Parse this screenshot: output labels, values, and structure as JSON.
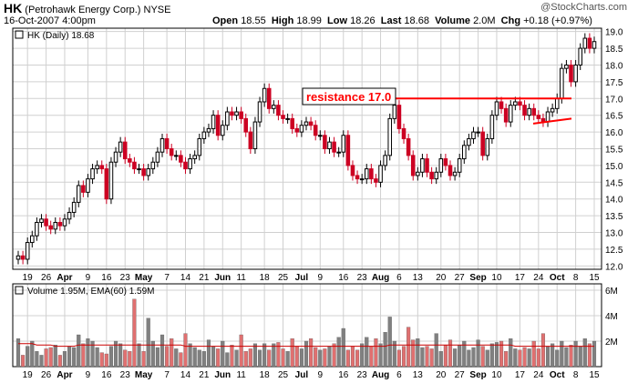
{
  "header": {
    "symbol": "HK",
    "company": "(Petrohawk Energy Corp.)",
    "exchange": "NYSE",
    "date": "16-Oct-2007 4:00pm",
    "watermark": "@StockCharts.com",
    "open_label": "Open",
    "open": "18.55",
    "high_label": "High",
    "high": "18.99",
    "low_label": "Low",
    "low": "18.26",
    "last_label": "Last",
    "last": "18.68",
    "volume_label": "Volume",
    "volume": "2.0M",
    "chg_label": "Chg",
    "chg": "+0.18 (+0.97%)"
  },
  "price_legend": "HK (Daily) 18.68",
  "volume_legend": "Volume 1.95M, EMA(60) 1.59M",
  "annotation": "resistance 17.0",
  "colors": {
    "up": "#000000",
    "down": "#cc0022",
    "resistance": "#ff0000",
    "vol_up": "#808080",
    "vol_down": "#e07070",
    "ema": "#cc0000",
    "grid": "#d0d0d0"
  },
  "chart_data": [
    {
      "type": "candlestick",
      "title": "HK (Daily) 18.68",
      "ylim": [
        11.9,
        19.1
      ],
      "yticks": [
        12.0,
        12.5,
        13.0,
        13.5,
        14.0,
        14.5,
        15.0,
        15.5,
        16.0,
        16.5,
        17.0,
        17.5,
        18.0,
        18.5,
        19.0
      ],
      "xticks": [
        "19",
        "26",
        "Apr",
        "9",
        "16",
        "23",
        "May",
        "7",
        "14",
        "21",
        "Jun",
        "11",
        "18",
        "25",
        "Jul",
        "9",
        "16",
        "23",
        "Aug",
        "6",
        "13",
        "20",
        "27",
        "Sep",
        "10",
        "17",
        "24",
        "Oct",
        "8",
        "15"
      ],
      "month_labels": [
        "Apr",
        "May",
        "Jun",
        "Jul",
        "Aug",
        "Sep",
        "Oct"
      ],
      "close": [
        12.3,
        12.2,
        12.7,
        12.9,
        13.3,
        13.4,
        13.2,
        13.1,
        13.3,
        13.2,
        13.4,
        13.6,
        13.9,
        14.4,
        14.2,
        14.6,
        14.9,
        15.0,
        14.9,
        14.0,
        15.1,
        15.4,
        15.7,
        15.2,
        15.1,
        14.9,
        14.9,
        14.7,
        14.9,
        15.1,
        15.4,
        15.8,
        15.5,
        15.3,
        15.3,
        15.1,
        14.9,
        15.2,
        15.3,
        15.8,
        16.0,
        16.1,
        16.5,
        15.9,
        16.2,
        16.6,
        16.5,
        16.6,
        16.4,
        16.0,
        15.5,
        16.3,
        16.9,
        17.3,
        16.7,
        16.8,
        16.5,
        16.4,
        16.4,
        16.1,
        16.0,
        16.2,
        16.3,
        16.2,
        15.9,
        15.9,
        15.5,
        15.7,
        15.4,
        15.4,
        15.9,
        15.0,
        14.7,
        14.6,
        14.6,
        14.9,
        14.6,
        14.5,
        15.0,
        15.3,
        16.4,
        16.8,
        16.1,
        15.8,
        15.3,
        14.7,
        14.8,
        15.2,
        14.8,
        14.6,
        14.8,
        15.2,
        15.0,
        14.7,
        14.8,
        15.2,
        15.6,
        15.8,
        16.0,
        16.0,
        15.3,
        15.8,
        16.5,
        16.9,
        16.7,
        16.3,
        16.8,
        16.9,
        16.8,
        16.5,
        16.7,
        16.5,
        16.4,
        16.3,
        16.6,
        16.7,
        17.0,
        17.9,
        18.0,
        17.5,
        18.0,
        18.5,
        18.8,
        18.5,
        18.7
      ],
      "volume_ylim": [
        0,
        6.5
      ],
      "volume_ticks": [
        2,
        4,
        6
      ],
      "volume_tick_labels": [
        "2M",
        "4M",
        "6M"
      ],
      "volume": [
        2.2,
        0.9,
        1.6,
        2.0,
        1.2,
        0.9,
        1.4,
        1.5,
        1.7,
        0.9,
        1.2,
        1.6,
        1.5,
        2.5,
        1.8,
        2.2,
        2.0,
        1.5,
        1.1,
        1.0,
        1.6,
        2.0,
        1.8,
        1.3,
        1.2,
        5.3,
        1.8,
        1.2,
        3.8,
        2.0,
        1.5,
        2.5,
        1.6,
        2.2,
        1.4,
        1.1,
        2.6,
        1.8,
        1.5,
        1.3,
        1.2,
        2.1,
        1.6,
        1.4,
        2.0,
        1.1,
        1.7,
        1.3,
        2.5,
        1.2,
        1.4,
        1.8,
        1.3,
        1.8,
        1.3,
        1.8,
        1.9,
        1.4,
        1.2,
        2.2,
        1.6,
        1.4,
        2.0,
        2.2,
        1.5,
        1.3,
        1.4,
        1.6,
        1.8,
        2.3,
        3.0,
        1.3,
        1.6,
        1.3,
        1.8,
        2.3,
        1.6,
        2.2,
        1.8,
        2.7,
        3.9,
        2.0,
        1.3,
        1.6,
        3.1,
        2.1,
        2.2,
        1.5,
        1.6,
        1.4,
        2.6,
        1.2,
        1.7,
        2.1,
        1.4,
        1.7,
        2.0,
        1.3,
        1.5,
        2.1,
        1.6,
        1.3,
        1.8,
        1.9,
        2.0,
        1.2,
        2.2,
        1.4,
        1.3,
        1.5,
        1.4,
        2.0,
        1.4,
        2.6,
        1.6,
        1.8,
        1.3,
        2.0,
        1.5,
        1.7,
        2.0,
        1.6,
        2.2,
        1.8,
        2.0
      ],
      "ema60": [
        1.8,
        1.8,
        1.8,
        1.8,
        1.7,
        1.7,
        1.7,
        1.7,
        1.6,
        1.6,
        1.6,
        1.6,
        1.6,
        1.7,
        1.7,
        1.7,
        1.7,
        1.7,
        1.7,
        1.7,
        1.7,
        1.7,
        1.7,
        1.7,
        1.7,
        1.7,
        1.7,
        1.7,
        1.7,
        1.7,
        1.7,
        1.7,
        1.7,
        1.7,
        1.7,
        1.7,
        1.6,
        1.6,
        1.6,
        1.6,
        1.6,
        1.6,
        1.6,
        1.6,
        1.6,
        1.6,
        1.6,
        1.6,
        1.6,
        1.6,
        1.6,
        1.6,
        1.6,
        1.6,
        1.6,
        1.6,
        1.6,
        1.6,
        1.6,
        1.6,
        1.6,
        1.6,
        1.6,
        1.6,
        1.6,
        1.6,
        1.6,
        1.6,
        1.6,
        1.6,
        1.6,
        1.6,
        1.6,
        1.6,
        1.6,
        1.6,
        1.6,
        1.6,
        1.6,
        1.6,
        1.7,
        1.7,
        1.7,
        1.7,
        1.7,
        1.7,
        1.7,
        1.7,
        1.7,
        1.7,
        1.7,
        1.7,
        1.7,
        1.7,
        1.7,
        1.7,
        1.7,
        1.7,
        1.7,
        1.7,
        1.7,
        1.7,
        1.7,
        1.7,
        1.7,
        1.7,
        1.7,
        1.6,
        1.6,
        1.6,
        1.6,
        1.6,
        1.6,
        1.6,
        1.6,
        1.6,
        1.6,
        1.6,
        1.6,
        1.6,
        1.6,
        1.6,
        1.6,
        1.6,
        1.6
      ],
      "resistance_level": 17.0,
      "support_line": [
        [
          16.25,
          16.4
        ]
      ]
    }
  ]
}
